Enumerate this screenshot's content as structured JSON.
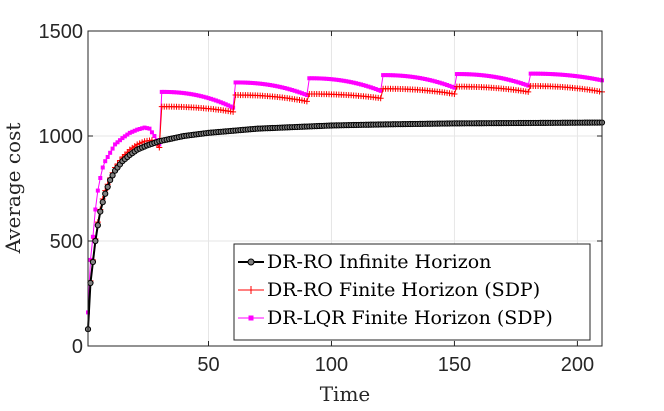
{
  "chart_data": {
    "type": "line",
    "xlabel": "Time",
    "ylabel": "Average cost",
    "xlim": [
      1,
      210
    ],
    "ylim": [
      0,
      1500
    ],
    "xticks": [
      50,
      100,
      150,
      200
    ],
    "yticks": [
      0,
      500,
      1000,
      1500
    ],
    "grid": true,
    "legend_position": "bottom-right",
    "period": 30,
    "series": [
      {
        "name": "DR-RO Infinite Horizon",
        "color": "#000000",
        "marker": "circle",
        "anchors": [
          [
            1,
            80
          ],
          [
            2,
            300
          ],
          [
            3,
            400
          ],
          [
            4,
            500
          ],
          [
            5,
            575
          ],
          [
            6,
            640
          ],
          [
            7,
            685
          ],
          [
            8,
            725
          ],
          [
            10,
            790
          ],
          [
            12,
            835
          ],
          [
            15,
            880
          ],
          [
            18,
            910
          ],
          [
            21,
            935
          ],
          [
            25,
            955
          ],
          [
            30,
            975
          ],
          [
            40,
            1000
          ],
          [
            50,
            1015
          ],
          [
            60,
            1025
          ],
          [
            70,
            1035
          ],
          [
            80,
            1040
          ],
          [
            90,
            1045
          ],
          [
            100,
            1050
          ],
          [
            120,
            1055
          ],
          [
            150,
            1060
          ],
          [
            180,
            1062
          ],
          [
            210,
            1064
          ]
        ]
      },
      {
        "name": "DR-RO Finite Horizon (SDP)",
        "color": "#ff0000",
        "marker": "plus",
        "first_period": [
          [
            1,
            80
          ],
          [
            2,
            310
          ],
          [
            3,
            410
          ],
          [
            4,
            510
          ],
          [
            5,
            590
          ],
          [
            6,
            650
          ],
          [
            7,
            700
          ],
          [
            8,
            740
          ],
          [
            10,
            800
          ],
          [
            12,
            850
          ],
          [
            15,
            900
          ],
          [
            18,
            935
          ],
          [
            21,
            960
          ],
          [
            24,
            975
          ],
          [
            27,
            980
          ],
          [
            29,
            960
          ],
          [
            30,
            945
          ]
        ],
        "peaks": [
          1140,
          1195,
          1200,
          1225,
          1235,
          1238
        ],
        "troughs": [
          1115,
          1165,
          1180,
          1200,
          1210,
          1210
        ]
      },
      {
        "name": "DR-LQR Finite Horizon (SDP)",
        "color": "#ff00ff",
        "marker": "square",
        "first_period": [
          [
            1,
            160
          ],
          [
            2,
            410
          ],
          [
            3,
            520
          ],
          [
            4,
            650
          ],
          [
            5,
            740
          ],
          [
            6,
            800
          ],
          [
            7,
            850
          ],
          [
            8,
            880
          ],
          [
            10,
            920
          ],
          [
            12,
            960
          ],
          [
            15,
            990
          ],
          [
            18,
            1015
          ],
          [
            21,
            1030
          ],
          [
            24,
            1040
          ],
          [
            26,
            1035
          ],
          [
            28,
            1000
          ],
          [
            30,
            960
          ]
        ],
        "peaks": [
          1210,
          1255,
          1275,
          1290,
          1295,
          1297
        ],
        "troughs": [
          1135,
          1195,
          1215,
          1230,
          1240,
          1265
        ]
      }
    ]
  }
}
